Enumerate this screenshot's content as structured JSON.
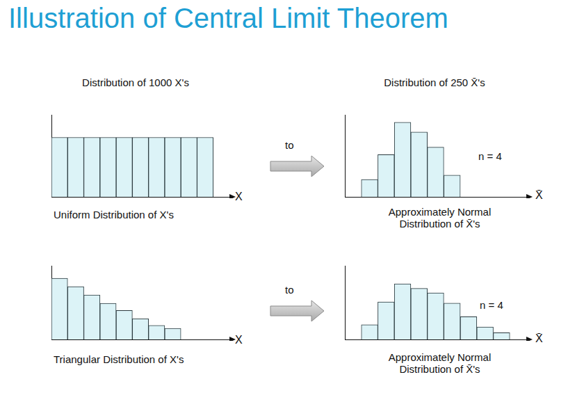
{
  "title": "Illustration of Central Limit Theorem",
  "arrows": [
    {
      "label": "to"
    },
    {
      "label": "to"
    }
  ],
  "chart_data": [
    {
      "type": "histogram",
      "title": "Distribution of 1000 X's",
      "caption": "Uniform Distribution of X's",
      "x_label": "X",
      "bins": [
        0,
        1,
        2,
        3,
        4,
        5,
        6,
        7,
        8,
        9,
        10
      ],
      "values": [
        100,
        100,
        100,
        100,
        100,
        100,
        100,
        100,
        100,
        100
      ],
      "xlim": [
        0,
        11
      ],
      "ylim": [
        0,
        138
      ],
      "color": "#dcf3f7",
      "grid": false,
      "tick_labels": false
    },
    {
      "type": "histogram",
      "title": "Distribution of 250 X̄'s",
      "caption": "Approximately Normal\nDistribution of X̄'s",
      "x_label": "X̄",
      "annotation": "n = 4",
      "bins": [
        1,
        2,
        3,
        4,
        5,
        6,
        7
      ],
      "values": [
        16,
        39,
        69,
        60,
        46,
        20
      ],
      "xlim": [
        0,
        11
      ],
      "ylim": [
        0,
        76
      ],
      "color": "#dcf3f7",
      "grid": false,
      "tick_labels": false
    },
    {
      "type": "histogram",
      "caption": "Triangular Distribution of X's",
      "x_label": "X",
      "bins": [
        0,
        1,
        2,
        3,
        4,
        5,
        6,
        7,
        8
      ],
      "values": [
        227,
        196,
        165,
        134,
        108,
        77,
        52,
        41
      ],
      "xlim": [
        0,
        11
      ],
      "ylim": [
        0,
        274
      ],
      "color": "#dcf3f7",
      "grid": false,
      "tick_labels": false
    },
    {
      "type": "histogram",
      "caption": "Approximately Normal\nDistribution of X̄'s",
      "x_label": "X̄",
      "annotation": "n = 4",
      "bins": [
        1,
        2,
        3,
        4,
        5,
        6,
        7,
        8,
        9,
        10
      ],
      "values": [
        13,
        33,
        49,
        45,
        41,
        32,
        20,
        11,
        6
      ],
      "xlim": [
        0,
        11
      ],
      "ylim": [
        0,
        65
      ],
      "color": "#dcf3f7",
      "grid": false,
      "tick_labels": false
    }
  ]
}
